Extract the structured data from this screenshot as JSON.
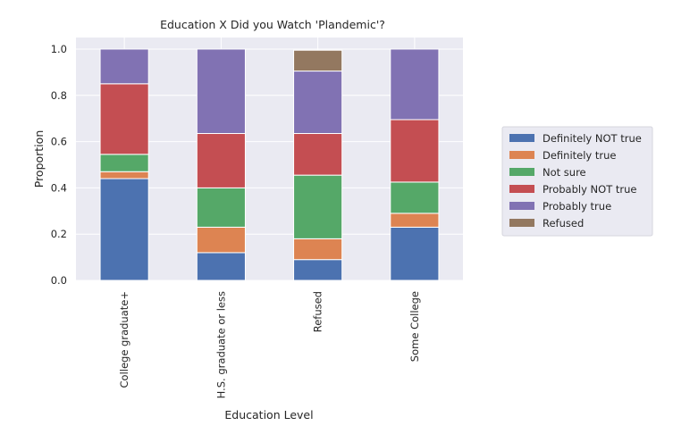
{
  "chart_data": {
    "type": "bar",
    "stacked": true,
    "title": "Education X Did you Watch 'Plandemic'?",
    "xlabel": "Education Level",
    "ylabel": "Proportion",
    "ylim": [
      0,
      1.05
    ],
    "yticks": [
      "0.0",
      "0.2",
      "0.4",
      "0.6",
      "0.8",
      "1.0"
    ],
    "ytick_values": [
      0,
      0.2,
      0.4,
      0.6,
      0.8,
      1.0
    ],
    "grid": true,
    "legend_position": "right",
    "categories": [
      "College graduate+",
      "H.S. graduate or less",
      "Refused",
      "Some College"
    ],
    "series": [
      {
        "name": "Definitely NOT true",
        "color": "#4c72b0",
        "values": [
          0.44,
          0.12,
          0.09,
          0.23
        ]
      },
      {
        "name": "Definitely true",
        "color": "#dd8452",
        "values": [
          0.03,
          0.11,
          0.09,
          0.06
        ]
      },
      {
        "name": "Not sure",
        "color": "#55a868",
        "values": [
          0.075,
          0.17,
          0.275,
          0.135
        ]
      },
      {
        "name": "Probably NOT true",
        "color": "#c44e52",
        "values": [
          0.305,
          0.235,
          0.18,
          0.27
        ]
      },
      {
        "name": "Probably true",
        "color": "#8172b3",
        "values": [
          0.15,
          0.365,
          0.27,
          0.305
        ]
      },
      {
        "name": "Refused",
        "color": "#937860",
        "values": [
          0,
          0,
          0.09,
          0
        ]
      }
    ]
  }
}
